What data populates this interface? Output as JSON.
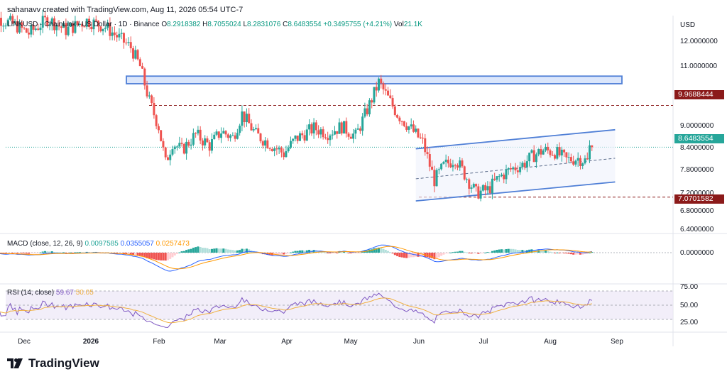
{
  "header": {
    "credit": "sahanavv created with TradingView.com, Aug 11, 2026 05:54 UTC-7"
  },
  "symbol_bar": {
    "title": "LINKUSD · ChainLink / US Dollar · 1D · Binance",
    "open_label": "O",
    "open": "8.2918382",
    "high_label": "H",
    "high": "8.7055024",
    "low_label": "L",
    "low": "8.2831076",
    "close_label": "C",
    "close": "8.6483554",
    "change": "+0.3495755 (+4.21%)",
    "vol_label": "Vol",
    "vol": "21.1K"
  },
  "currency": "USD",
  "price_axis": {
    "ticks": [
      "12.0000000",
      "11.0000000",
      "9.0000000",
      "8.4000000",
      "7.8000000",
      "7.2000000",
      "6.8000000",
      "6.4000000"
    ],
    "tags": {
      "resistance": "9.9688444",
      "last": "8.6483554",
      "support": "7.0701582"
    }
  },
  "macd": {
    "label": "MACD (close, 12, 26, 9)",
    "hist_value": "0.0097585",
    "macd_value": "0.0355057",
    "signal_value": "0.0257473",
    "axis_tick": "0.0000000"
  },
  "rsi": {
    "label": "RSI (14, close)",
    "value": "59.67",
    "ma_value": "50.05",
    "ticks": [
      "75.00",
      "50.00",
      "25.00"
    ]
  },
  "time_axis": {
    "labels": [
      {
        "text": "Dec",
        "bold": false
      },
      {
        "text": "2026",
        "bold": true
      },
      {
        "text": "Feb",
        "bold": false
      },
      {
        "text": "Mar",
        "bold": false
      },
      {
        "text": "Apr",
        "bold": false
      },
      {
        "text": "May",
        "bold": false
      },
      {
        "text": "Jun",
        "bold": false
      },
      {
        "text": "Jul",
        "bold": false
      },
      {
        "text": "Aug",
        "bold": false
      },
      {
        "text": "Sep",
        "bold": false
      }
    ]
  },
  "brand": {
    "name": "TradingView"
  },
  "colors": {
    "up": "#26a69a",
    "down": "#ef5350",
    "channel": "#4f7fd6",
    "resistance_tag": "#8b1a1a",
    "last_tag": "#26a69a",
    "rsi_line": "#7e57c2",
    "rsi_ma": "#f0b041",
    "macd_line": "#2962ff",
    "signal_line": "#ff9800"
  },
  "chart_data": {
    "type": "candlestick",
    "title": "LINKUSD · ChainLink / US Dollar · 1D · Binance",
    "ylabel": "USD",
    "ylim": [
      6.2,
      12.6
    ],
    "x_range": [
      "2025-12-01",
      "2026-09-15"
    ],
    "support_level": 7.0701582,
    "resistance_level": 9.9688444,
    "last_price": 8.6483554,
    "resistance_zone": [
      10.7,
      10.85
    ],
    "channel_upper": [
      [
        "2026-05-27",
        8.6
      ],
      [
        "2026-08-21",
        9.2
      ]
    ],
    "channel_mid": [
      [
        "2026-05-27",
        7.65
      ],
      [
        "2026-08-21",
        8.3
      ]
    ],
    "channel_lower": [
      [
        "2026-05-27",
        6.95
      ],
      [
        "2026-08-21",
        7.55
      ]
    ],
    "price_path": [
      [
        "2025-11-22",
        12.9
      ],
      [
        "2025-12-05",
        12.55
      ],
      [
        "2025-12-12",
        12.25
      ],
      [
        "2025-12-20",
        12.7
      ],
      [
        "2025-12-28",
        12.35
      ],
      [
        "2026-01-06",
        12.65
      ],
      [
        "2026-01-14",
        12.45
      ],
      [
        "2026-01-20",
        12.1
      ],
      [
        "2026-01-25",
        11.8
      ],
      [
        "2026-01-29",
        11.2
      ],
      [
        "2026-02-02",
        10.1
      ],
      [
        "2026-02-06",
        9.3
      ],
      [
        "2026-02-09",
        8.15
      ],
      [
        "2026-02-12",
        8.8
      ],
      [
        "2026-02-16",
        8.55
      ],
      [
        "2026-02-22",
        9.05
      ],
      [
        "2026-02-28",
        8.7
      ],
      [
        "2026-03-05",
        9.15
      ],
      [
        "2026-03-10",
        8.95
      ],
      [
        "2026-03-14",
        9.7
      ],
      [
        "2026-03-20",
        9.05
      ],
      [
        "2026-03-26",
        8.75
      ],
      [
        "2026-04-01",
        8.45
      ],
      [
        "2026-04-06",
        8.9
      ],
      [
        "2026-04-14",
        9.25
      ],
      [
        "2026-04-20",
        9.1
      ],
      [
        "2026-04-26",
        9.3
      ],
      [
        "2026-05-02",
        9.0
      ],
      [
        "2026-05-08",
        10.0
      ],
      [
        "2026-05-12",
        10.7
      ],
      [
        "2026-05-16",
        10.2
      ],
      [
        "2026-05-20",
        9.7
      ],
      [
        "2026-05-25",
        9.3
      ],
      [
        "2026-05-31",
        8.8
      ],
      [
        "2026-06-05",
        7.6
      ],
      [
        "2026-06-09",
        8.05
      ],
      [
        "2026-06-14",
        8.3
      ],
      [
        "2026-06-18",
        7.8
      ],
      [
        "2026-06-23",
        7.2
      ],
      [
        "2026-06-28",
        7.3
      ],
      [
        "2026-07-03",
        7.7
      ],
      [
        "2026-07-08",
        7.95
      ],
      [
        "2026-07-13",
        8.1
      ],
      [
        "2026-07-18",
        8.4
      ],
      [
        "2026-07-22",
        8.55
      ],
      [
        "2026-07-27",
        8.5
      ],
      [
        "2026-08-01",
        8.25
      ],
      [
        "2026-08-06",
        8.3
      ],
      [
        "2026-08-10",
        8.2
      ],
      [
        "2026-08-11",
        8.6483554
      ]
    ],
    "macd_zero": 0.0,
    "rsi_levels": [
      25,
      50,
      75
    ]
  }
}
